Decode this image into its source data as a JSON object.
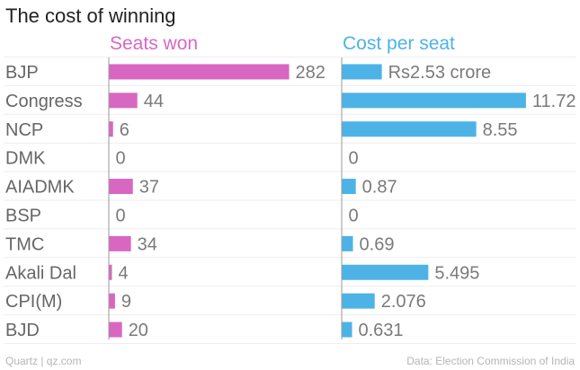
{
  "title": "The cost of winning",
  "footer": {
    "left": "Quartz | qz.com",
    "right": "Data: Election Commission of India"
  },
  "colors": {
    "seats": "#d867c2",
    "cost": "#4db3e6",
    "category_text": "#666666",
    "value_text": "#7a7a7a",
    "gridline": "#eeeeee",
    "axis": "#9a9a9a"
  },
  "chart_data": {
    "type": "bar",
    "orientation": "horizontal",
    "title": "The cost of winning",
    "categories": [
      "BJP",
      "Congress",
      "NCP",
      "DMK",
      "AIADMK",
      "BSP",
      "TMC",
      "Akali Dal",
      "CPI(M)",
      "BJD"
    ],
    "series": [
      {
        "name": "Seats won",
        "values": [
          282,
          44,
          6,
          0,
          37,
          0,
          34,
          4,
          9,
          20
        ],
        "labels": [
          "282",
          "44",
          "6",
          "0",
          "37",
          "0",
          "34",
          "4",
          "9",
          "20"
        ],
        "xlim": [
          0,
          320
        ]
      },
      {
        "name": "Cost per seat",
        "values": [
          2.53,
          11.72,
          8.55,
          0,
          0.87,
          0,
          0.69,
          5.495,
          2.076,
          0.631
        ],
        "labels": [
          "Rs2.53 crore",
          "11.72",
          "8.55",
          "0",
          "0.87",
          "0",
          "0.69",
          "5.495",
          "2.076",
          "0.631"
        ],
        "xlim": [
          0,
          12.5
        ]
      }
    ],
    "grid": true,
    "legend": "panel titles above each column"
  }
}
